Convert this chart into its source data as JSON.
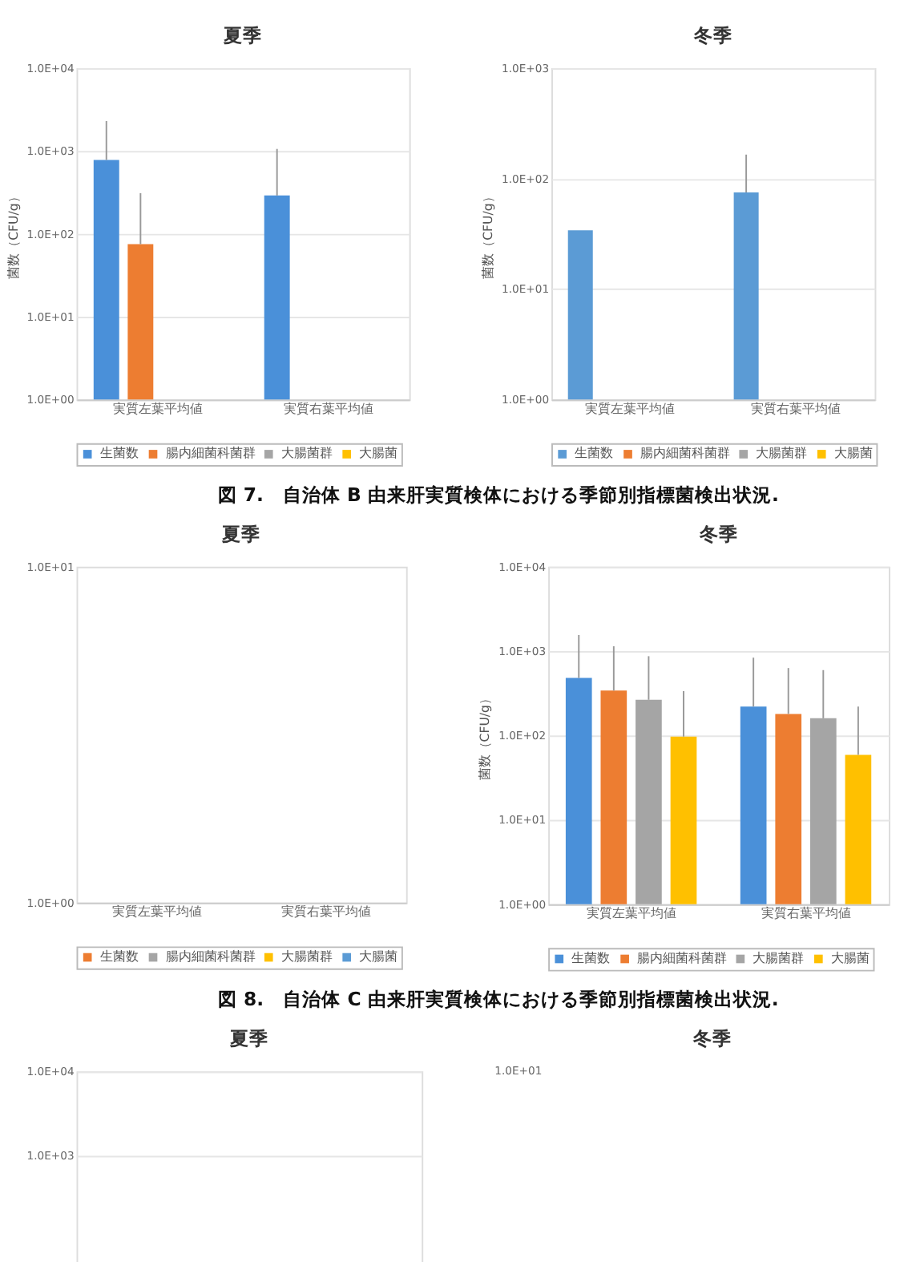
{
  "chart_data": [
    {
      "type": "bar",
      "title": "夏季",
      "ylabel": "菌数（CFU/g）",
      "categories": [
        "実質左葉平均値",
        "実質右葉平均値"
      ],
      "log": true,
      "ylim": [
        1,
        10000
      ],
      "yticks": [
        {
          "value": 1,
          "label": "1.0E+00"
        },
        {
          "value": 10,
          "label": "1.0E+01"
        },
        {
          "value": 100,
          "label": "1.0E+02"
        },
        {
          "value": 1000,
          "label": "1.0E+03"
        },
        {
          "value": 10000,
          "label": "1.0E+04"
        }
      ],
      "grid": "y",
      "legend": "bottom",
      "series": [
        {
          "name": "生菌数",
          "color": "#4a90d9",
          "values": [
            780,
            290
          ],
          "errors": [
            [
              780,
              2300
            ],
            [
              290,
              1060
            ]
          ]
        },
        {
          "name": "腸内細菌科菌群",
          "color": "#ed7d31",
          "values": [
            75,
            null
          ],
          "errors": [
            [
              75,
              310
            ],
            null
          ]
        },
        {
          "name": "大腸菌群",
          "color": "#a5a5a5",
          "values": [
            null,
            null
          ]
        },
        {
          "name": "大腸菌",
          "color": "#ffc000",
          "values": [
            null,
            null
          ]
        }
      ]
    },
    {
      "type": "bar",
      "title": "冬季",
      "ylabel": "菌数（CFU/g）",
      "categories": [
        "実質左葉平均値",
        "実質右葉平均値"
      ],
      "log": true,
      "ylim": [
        1,
        1000
      ],
      "yticks": [
        {
          "value": 1,
          "label": "1.0E+00"
        },
        {
          "value": 10,
          "label": "1.0E+01"
        },
        {
          "value": 100,
          "label": "1.0E+02"
        },
        {
          "value": 1000,
          "label": "1.0E+03"
        }
      ],
      "grid": "y",
      "legend": "bottom",
      "series": [
        {
          "name": "生菌数",
          "color": "#5b9bd5",
          "values": [
            34,
            75
          ],
          "errors": [
            null,
            [
              75,
              165
            ]
          ]
        },
        {
          "name": "腸内細菌科菌群",
          "color": "#ed7d31",
          "values": [
            null,
            null
          ]
        },
        {
          "name": "大腸菌群",
          "color": "#a5a5a5",
          "values": [
            null,
            null
          ]
        },
        {
          "name": "大腸菌",
          "color": "#ffc000",
          "values": [
            null,
            null
          ]
        }
      ]
    },
    {
      "type": "other",
      "annotations": [
        "図 7.　自治体 B 由来肝実質検体における季節別指標菌検出状況."
      ]
    },
    {
      "type": "bar",
      "title": "夏季",
      "categories": [
        "実質左葉平均値",
        "実質右葉平均値"
      ],
      "log": true,
      "ylim": [
        1,
        10
      ],
      "yticks": [
        {
          "value": 1,
          "label": "1.0E+00"
        },
        {
          "value": 10,
          "label": "1.0E+01"
        }
      ],
      "legend": "bottom",
      "series": [
        {
          "name": "生菌数",
          "color": "#ed7d31",
          "values": [
            null,
            null
          ]
        },
        {
          "name": "腸内細菌科菌群",
          "color": "#a5a5a5",
          "values": [
            null,
            null
          ]
        },
        {
          "name": "大腸菌群",
          "color": "#ffc000",
          "values": [
            null,
            null
          ]
        },
        {
          "name": "大腸菌",
          "color": "#5b9bd5",
          "values": [
            null,
            null
          ]
        }
      ]
    },
    {
      "type": "bar",
      "title": "冬季",
      "ylabel": "菌数（CFU/g）",
      "categories": [
        "実質左葉平均値",
        "実質右葉平均値"
      ],
      "log": true,
      "ylim": [
        1,
        10000
      ],
      "yticks": [
        {
          "value": 1,
          "label": "1.0E+00"
        },
        {
          "value": 10,
          "label": "1.0E+01"
        },
        {
          "value": 100,
          "label": "1.0E+02"
        },
        {
          "value": 1000,
          "label": "1.0E+03"
        },
        {
          "value": 10000,
          "label": "1.0E+04"
        }
      ],
      "grid": "y",
      "legend": "bottom",
      "series": [
        {
          "name": "生菌数",
          "color": "#4a90d9",
          "values": [
            480,
            220
          ],
          "errors": [
            [
              480,
              1550
            ],
            [
              220,
              835
            ]
          ]
        },
        {
          "name": "腸内細菌科菌群",
          "color": "#ed7d31",
          "values": [
            340,
            180
          ],
          "errors": [
            [
              340,
              1140
            ],
            [
              180,
              630
            ]
          ]
        },
        {
          "name": "大腸菌群",
          "color": "#a5a5a5",
          "values": [
            265,
            160
          ],
          "errors": [
            [
              265,
              870
            ],
            [
              160,
              595
            ]
          ]
        },
        {
          "name": "大腸菌",
          "color": "#ffc000",
          "values": [
            97,
            59
          ],
          "errors": [
            [
              97,
              335
            ],
            [
              59,
              220
            ]
          ]
        }
      ]
    },
    {
      "type": "other",
      "annotations": [
        "図 8.　自治体 C 由来肝実質検体における季節別指標菌検出状況."
      ]
    },
    {
      "type": "bar",
      "title": "夏季",
      "categories": [
        null,
        null
      ],
      "values": [
        null,
        null
      ],
      "log": true,
      "ylim": [
        1,
        10000
      ],
      "yticks": [
        {
          "value": 1000,
          "label": "1.0E+03"
        },
        {
          "value": 10000,
          "label": "1.0E+04"
        }
      ],
      "grid": "y",
      "tick_labels": "y"
    },
    {
      "type": "other",
      "title": "冬季",
      "annotations": [
        "1.0E+01"
      ]
    }
  ]
}
